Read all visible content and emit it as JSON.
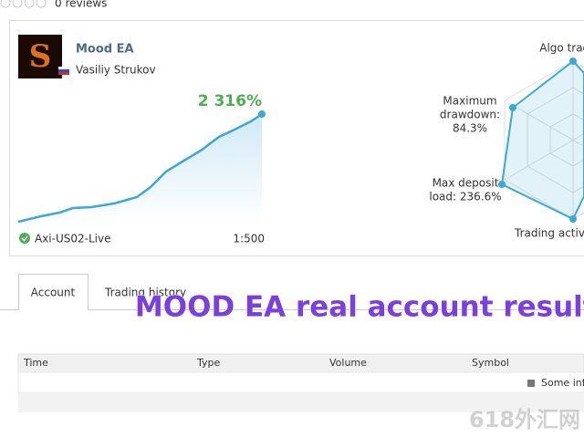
{
  "reviews": "0 reviews",
  "signal": {
    "name": "Mood EA",
    "author": "Vasiliy Strukov",
    "growth": "2 316%",
    "server": "Axi-US02-Live",
    "leverage": "1:500"
  },
  "radar": {
    "labels": [
      [
        "Algo trading"
      ],
      [
        "Maximum",
        "drawdown:",
        "84.3%"
      ],
      [
        "Max deposit",
        "load: 236.6%"
      ],
      [
        "Trading activi"
      ]
    ]
  },
  "tabs": [
    "Account",
    "Trading history"
  ],
  "overlay": "MOOD EA real account results",
  "table": {
    "headers": [
      "Time",
      "Type",
      "Volume",
      "Symbol"
    ],
    "note": "Some info"
  },
  "watermark": "618外汇网"
}
